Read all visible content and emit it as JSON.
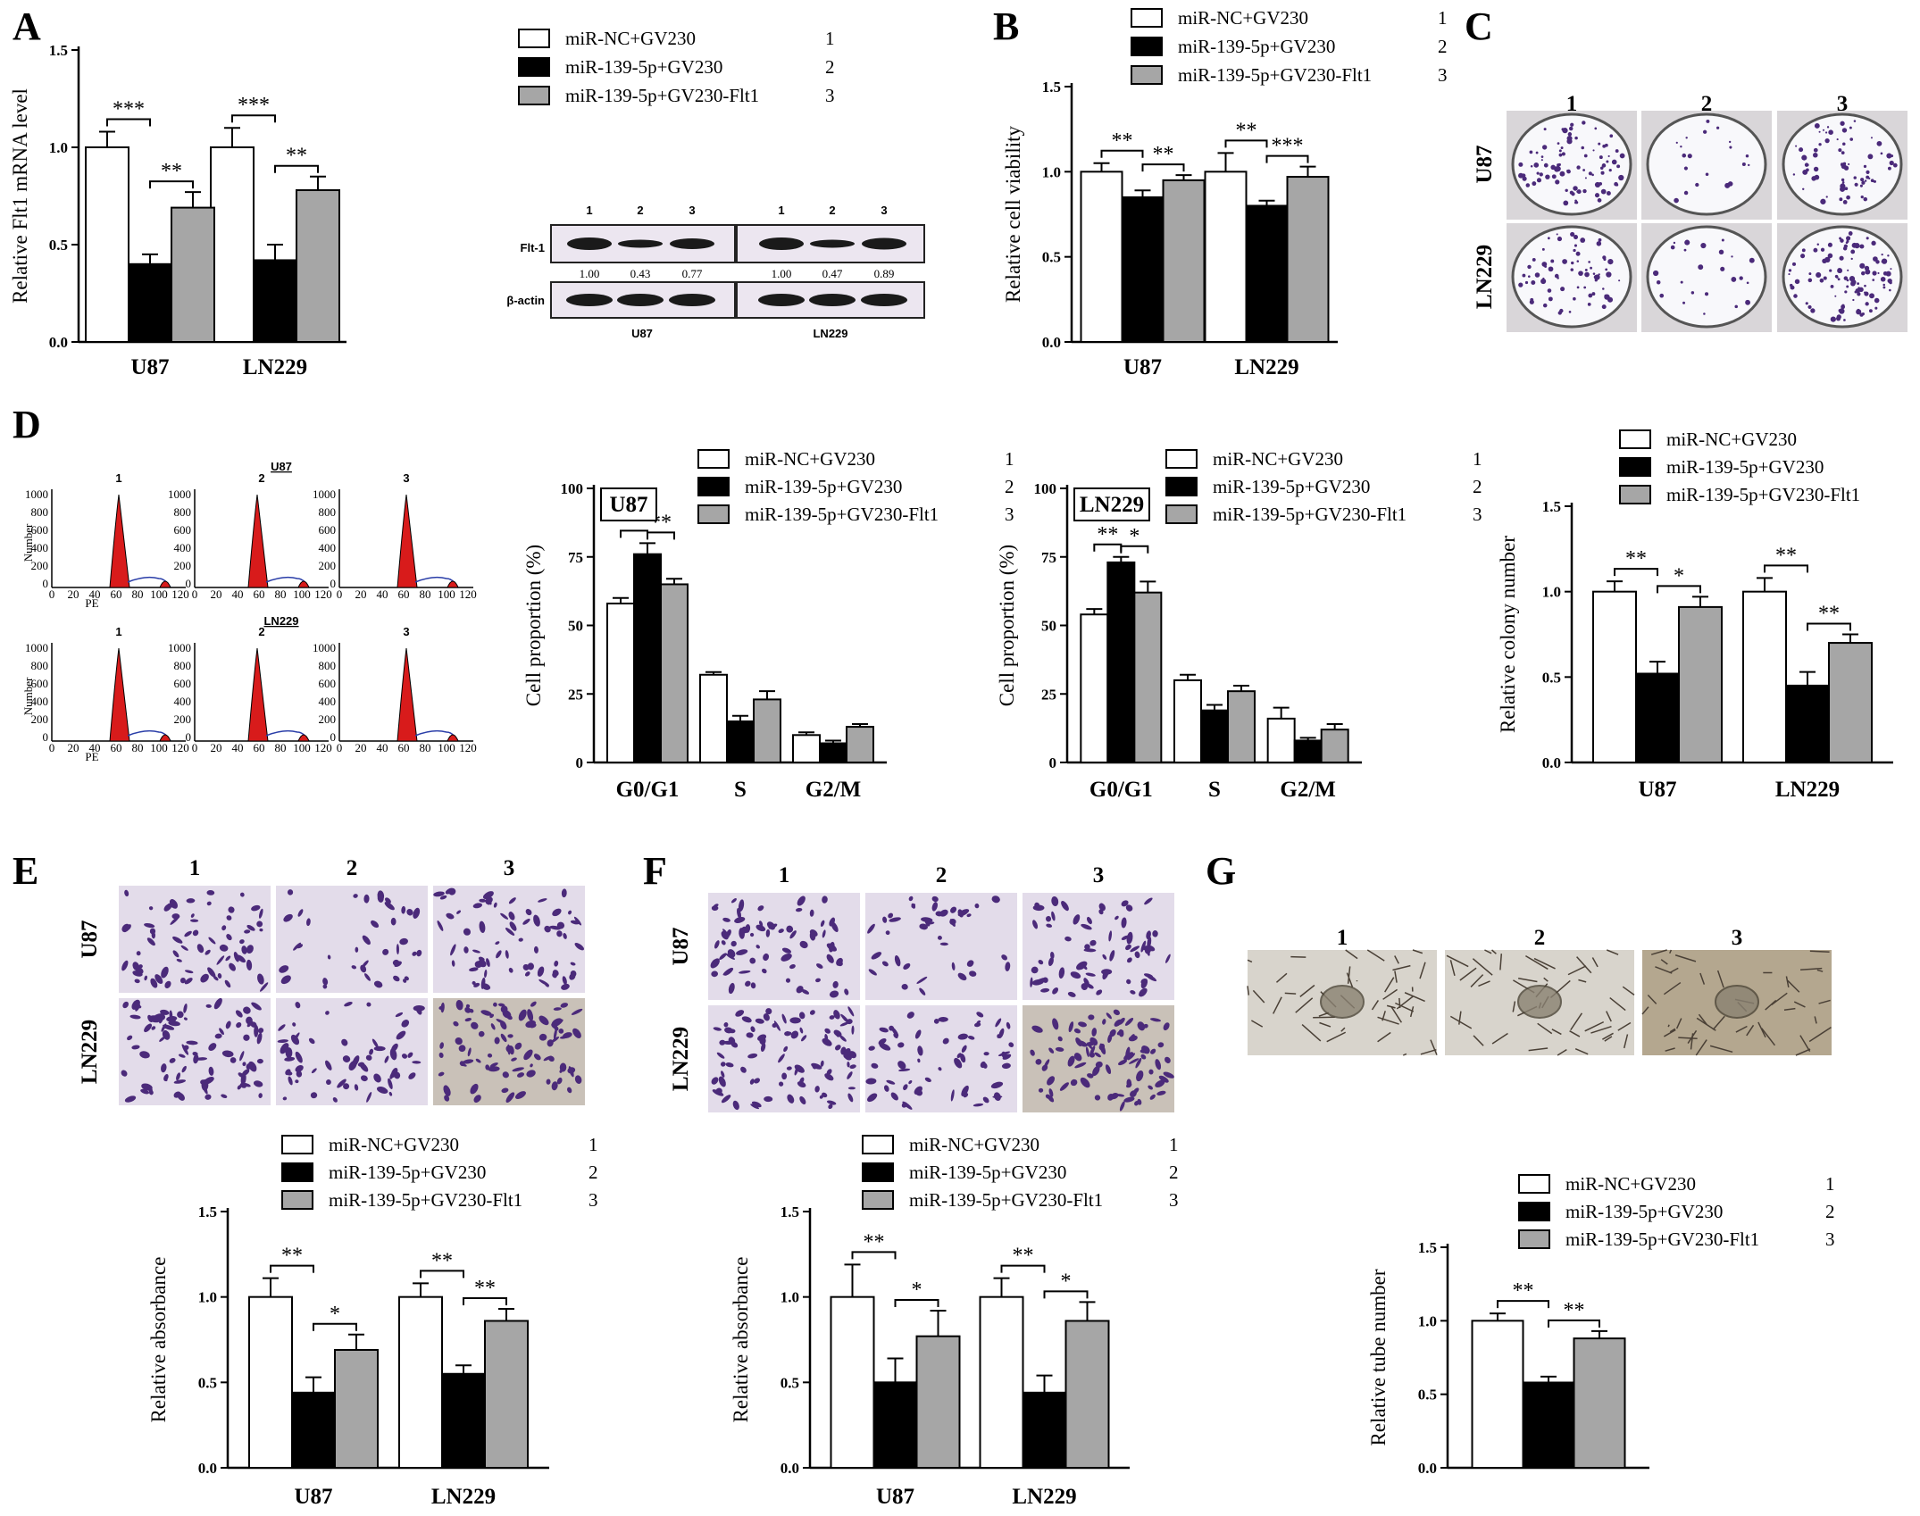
{
  "panel_labels": [
    "A",
    "B",
    "C",
    "D",
    "E",
    "F",
    "G"
  ],
  "legend": {
    "entries": [
      {
        "label": "miR-NC+GV230",
        "num": "1"
      },
      {
        "label": "miR-139-5p+GV230",
        "num": "2"
      },
      {
        "label": "miR-139-5p+GV230-Flt1",
        "num": "3"
      }
    ]
  },
  "colors": {
    "series1": "#ffffff",
    "series2": "#000000",
    "series3": "#a6a6a6",
    "flow_peak": "#d81b1b",
    "flow_fit": "#2a3ea8",
    "stain": "#4b2a7a",
    "membrane_bg": "#e3dcea"
  },
  "western": {
    "lane_nums": [
      "1",
      "2",
      "3",
      "1",
      "2",
      "3"
    ],
    "rows": [
      "Flt-1",
      "β-actin"
    ],
    "flt1_values": [
      "1.00",
      "0.43",
      "0.77",
      "1.00",
      "0.47",
      "0.89"
    ],
    "cells": [
      "U87",
      "LN229"
    ]
  },
  "flow": {
    "headers": [
      "U87",
      "LN229"
    ],
    "ylabel": "Number",
    "xlabel": "PE",
    "xticks": [
      "0",
      "20",
      "40",
      "60",
      "80",
      "100",
      "120"
    ],
    "yticks": [
      "0",
      "200",
      "400",
      "600",
      "800",
      "1000"
    ]
  },
  "image_panels": {
    "col_nums": [
      "1",
      "2",
      "3"
    ],
    "row_labels": [
      "U87",
      "LN229"
    ]
  },
  "chart_data": [
    {
      "id": "A",
      "type": "bar",
      "categories": [
        "U87",
        "LN229"
      ],
      "series": [
        {
          "values": [
            1.0,
            1.0
          ],
          "errors": [
            0.08,
            0.1
          ]
        },
        {
          "values": [
            0.4,
            0.42
          ],
          "errors": [
            0.05,
            0.08
          ]
        },
        {
          "values": [
            0.69,
            0.78
          ],
          "errors": [
            0.08,
            0.07
          ]
        }
      ],
      "ylabel": "Relative Flt1 mRNA level",
      "ylim": [
        0,
        1.5
      ],
      "yticks": [
        "0.0",
        "0.5",
        "1.0",
        "1.5"
      ],
      "significance": [
        {
          "cat": 0,
          "from": 0,
          "to": 1,
          "text": "***"
        },
        {
          "cat": 0,
          "from": 1,
          "to": 2,
          "text": "**"
        },
        {
          "cat": 1,
          "from": 0,
          "to": 1,
          "text": "***"
        },
        {
          "cat": 1,
          "from": 1,
          "to": 2,
          "text": "**"
        }
      ]
    },
    {
      "id": "B",
      "type": "bar",
      "categories": [
        "U87",
        "LN229"
      ],
      "series": [
        {
          "values": [
            1.0,
            1.0
          ],
          "errors": [
            0.05,
            0.11
          ]
        },
        {
          "values": [
            0.85,
            0.8
          ],
          "errors": [
            0.04,
            0.03
          ]
        },
        {
          "values": [
            0.95,
            0.97
          ],
          "errors": [
            0.03,
            0.06
          ]
        }
      ],
      "ylabel": "Relative cell viability",
      "ylim": [
        0,
        1.5
      ],
      "yticks": [
        "0.0",
        "0.5",
        "1.0",
        "1.5"
      ],
      "significance": [
        {
          "cat": 0,
          "from": 0,
          "to": 1,
          "text": "**"
        },
        {
          "cat": 0,
          "from": 1,
          "to": 2,
          "text": "**"
        },
        {
          "cat": 1,
          "from": 0,
          "to": 1,
          "text": "**"
        },
        {
          "cat": 1,
          "from": 1,
          "to": 2,
          "text": "***"
        }
      ]
    },
    {
      "id": "D-U87",
      "type": "bar",
      "title": "U87",
      "categories": [
        "G0/G1",
        "S",
        "G2/M"
      ],
      "series": [
        {
          "values": [
            58,
            32,
            10
          ],
          "errors": [
            2,
            1,
            1
          ]
        },
        {
          "values": [
            76,
            15,
            7
          ],
          "errors": [
            4,
            2,
            1
          ]
        },
        {
          "values": [
            65,
            23,
            13
          ],
          "errors": [
            2,
            3,
            1
          ]
        }
      ],
      "ylabel": "Cell proportion (%)",
      "ylim": [
        0,
        100
      ],
      "yticks": [
        "0",
        "25",
        "50",
        "75",
        "100"
      ],
      "significance": [
        {
          "cat": 0,
          "from": 0,
          "to": 1,
          "text": "**"
        },
        {
          "cat": 0,
          "from": 1,
          "to": 2,
          "text": "**"
        }
      ]
    },
    {
      "id": "D-LN229",
      "type": "bar",
      "title": "LN229",
      "categories": [
        "G0/G1",
        "S",
        "G2/M"
      ],
      "series": [
        {
          "values": [
            54,
            30,
            16
          ],
          "errors": [
            2,
            2,
            4
          ]
        },
        {
          "values": [
            73,
            19,
            8
          ],
          "errors": [
            2,
            2,
            1
          ]
        },
        {
          "values": [
            62,
            26,
            12
          ],
          "errors": [
            4,
            2,
            2
          ]
        }
      ],
      "ylabel": "Cell proportion (%)",
      "ylim": [
        0,
        100
      ],
      "yticks": [
        "0",
        "25",
        "50",
        "75",
        "100"
      ],
      "significance": [
        {
          "cat": 0,
          "from": 0,
          "to": 1,
          "text": "**"
        },
        {
          "cat": 0,
          "from": 1,
          "to": 2,
          "text": "*"
        }
      ]
    },
    {
      "id": "D-colony",
      "type": "bar",
      "categories": [
        "U87",
        "LN229"
      ],
      "series": [
        {
          "values": [
            1.0,
            1.0
          ],
          "errors": [
            0.06,
            0.08
          ]
        },
        {
          "values": [
            0.52,
            0.45
          ],
          "errors": [
            0.07,
            0.08
          ]
        },
        {
          "values": [
            0.91,
            0.7
          ],
          "errors": [
            0.06,
            0.05
          ]
        }
      ],
      "ylabel": "Relative colony number",
      "ylim": [
        0,
        1.5
      ],
      "yticks": [
        "0.0",
        "0.5",
        "1.0",
        "1.5"
      ],
      "significance": [
        {
          "cat": 0,
          "from": 0,
          "to": 1,
          "text": "**"
        },
        {
          "cat": 0,
          "from": 1,
          "to": 2,
          "text": "*"
        },
        {
          "cat": 1,
          "from": 0,
          "to": 1,
          "text": "**"
        },
        {
          "cat": 1,
          "from": 1,
          "to": 2,
          "text": "**"
        }
      ]
    },
    {
      "id": "E",
      "type": "bar",
      "categories": [
        "U87",
        "LN229"
      ],
      "series": [
        {
          "values": [
            1.0,
            1.0
          ],
          "errors": [
            0.11,
            0.08
          ]
        },
        {
          "values": [
            0.44,
            0.55
          ],
          "errors": [
            0.09,
            0.05
          ]
        },
        {
          "values": [
            0.69,
            0.86
          ],
          "errors": [
            0.09,
            0.07
          ]
        }
      ],
      "ylabel": "Relative absorbance",
      "ylim": [
        0,
        1.5
      ],
      "yticks": [
        "0.0",
        "0.5",
        "1.0",
        "1.5"
      ],
      "significance": [
        {
          "cat": 0,
          "from": 0,
          "to": 1,
          "text": "**"
        },
        {
          "cat": 0,
          "from": 1,
          "to": 2,
          "text": "*"
        },
        {
          "cat": 1,
          "from": 0,
          "to": 1,
          "text": "**"
        },
        {
          "cat": 1,
          "from": 1,
          "to": 2,
          "text": "**"
        }
      ]
    },
    {
      "id": "F",
      "type": "bar",
      "categories": [
        "U87",
        "LN229"
      ],
      "series": [
        {
          "values": [
            1.0,
            1.0
          ],
          "errors": [
            0.19,
            0.11
          ]
        },
        {
          "values": [
            0.5,
            0.44
          ],
          "errors": [
            0.14,
            0.1
          ]
        },
        {
          "values": [
            0.77,
            0.86
          ],
          "errors": [
            0.15,
            0.11
          ]
        }
      ],
      "ylabel": "Relative absorbance",
      "ylim": [
        0,
        1.5
      ],
      "yticks": [
        "0.0",
        "0.5",
        "1.0",
        "1.5"
      ],
      "significance": [
        {
          "cat": 0,
          "from": 0,
          "to": 1,
          "text": "**"
        },
        {
          "cat": 0,
          "from": 1,
          "to": 2,
          "text": "*"
        },
        {
          "cat": 1,
          "from": 0,
          "to": 1,
          "text": "**"
        },
        {
          "cat": 1,
          "from": 1,
          "to": 2,
          "text": "*"
        }
      ]
    },
    {
      "id": "G",
      "type": "bar",
      "categories": [
        ""
      ],
      "series": [
        {
          "values": [
            1.0
          ],
          "errors": [
            0.05
          ]
        },
        {
          "values": [
            0.58
          ],
          "errors": [
            0.04
          ]
        },
        {
          "values": [
            0.88
          ],
          "errors": [
            0.05
          ]
        }
      ],
      "ylabel": "Relative tube number",
      "ylim": [
        0,
        1.5
      ],
      "yticks": [
        "0.0",
        "0.5",
        "1.0",
        "1.5"
      ],
      "significance": [
        {
          "cat": 0,
          "from": 0,
          "to": 1,
          "text": "**"
        },
        {
          "cat": 0,
          "from": 1,
          "to": 2,
          "text": "**"
        }
      ]
    }
  ]
}
